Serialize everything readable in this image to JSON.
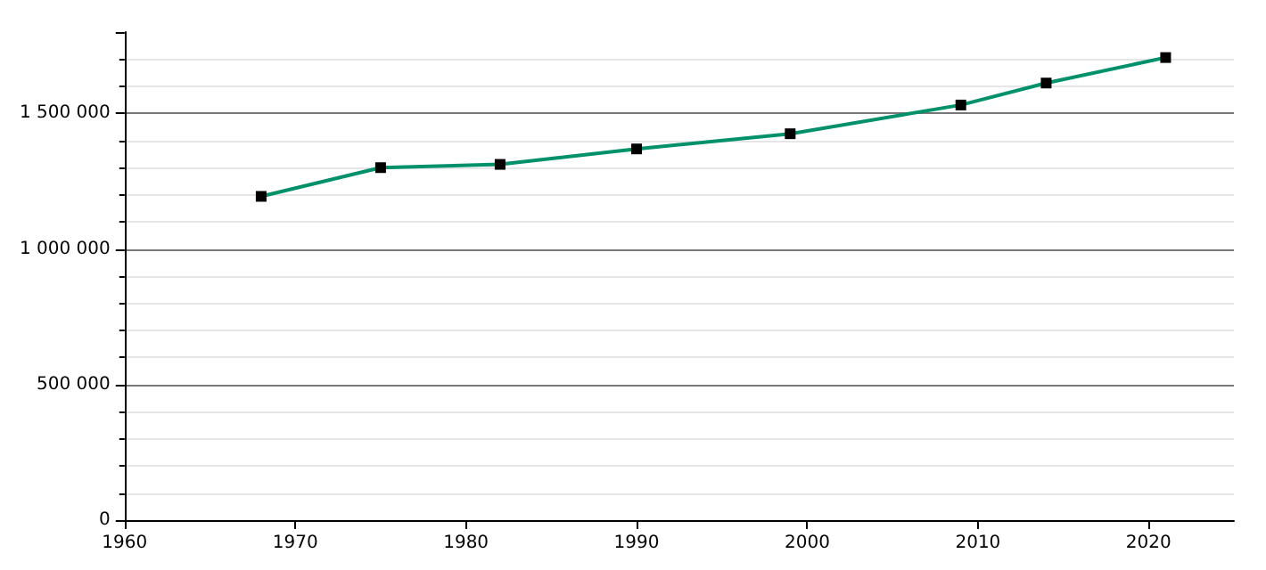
{
  "chart_data": {
    "type": "line",
    "x": [
      1968,
      1975,
      1982,
      1990,
      1999,
      2009,
      2014,
      2021
    ],
    "series": [
      {
        "color": "#00906a",
        "values": [
          1194000,
          1300000,
          1312000,
          1369000,
          1425000,
          1531000,
          1612000,
          1706000
        ]
      }
    ],
    "xlim": [
      1960,
      2025
    ],
    "xticks": [
      1960,
      1970,
      1980,
      1990,
      2000,
      2010,
      2020
    ],
    "ylim": [
      0,
      1800000
    ],
    "yticks": [
      0,
      {
        "value": 500000,
        "label": "500 000"
      },
      {
        "value": 1000000,
        "label": "1 000 000"
      },
      {
        "value": 1500000,
        "label": "1 500 000"
      }
    ],
    "grid": "y",
    "marker": "square",
    "line_style": "solid"
  }
}
